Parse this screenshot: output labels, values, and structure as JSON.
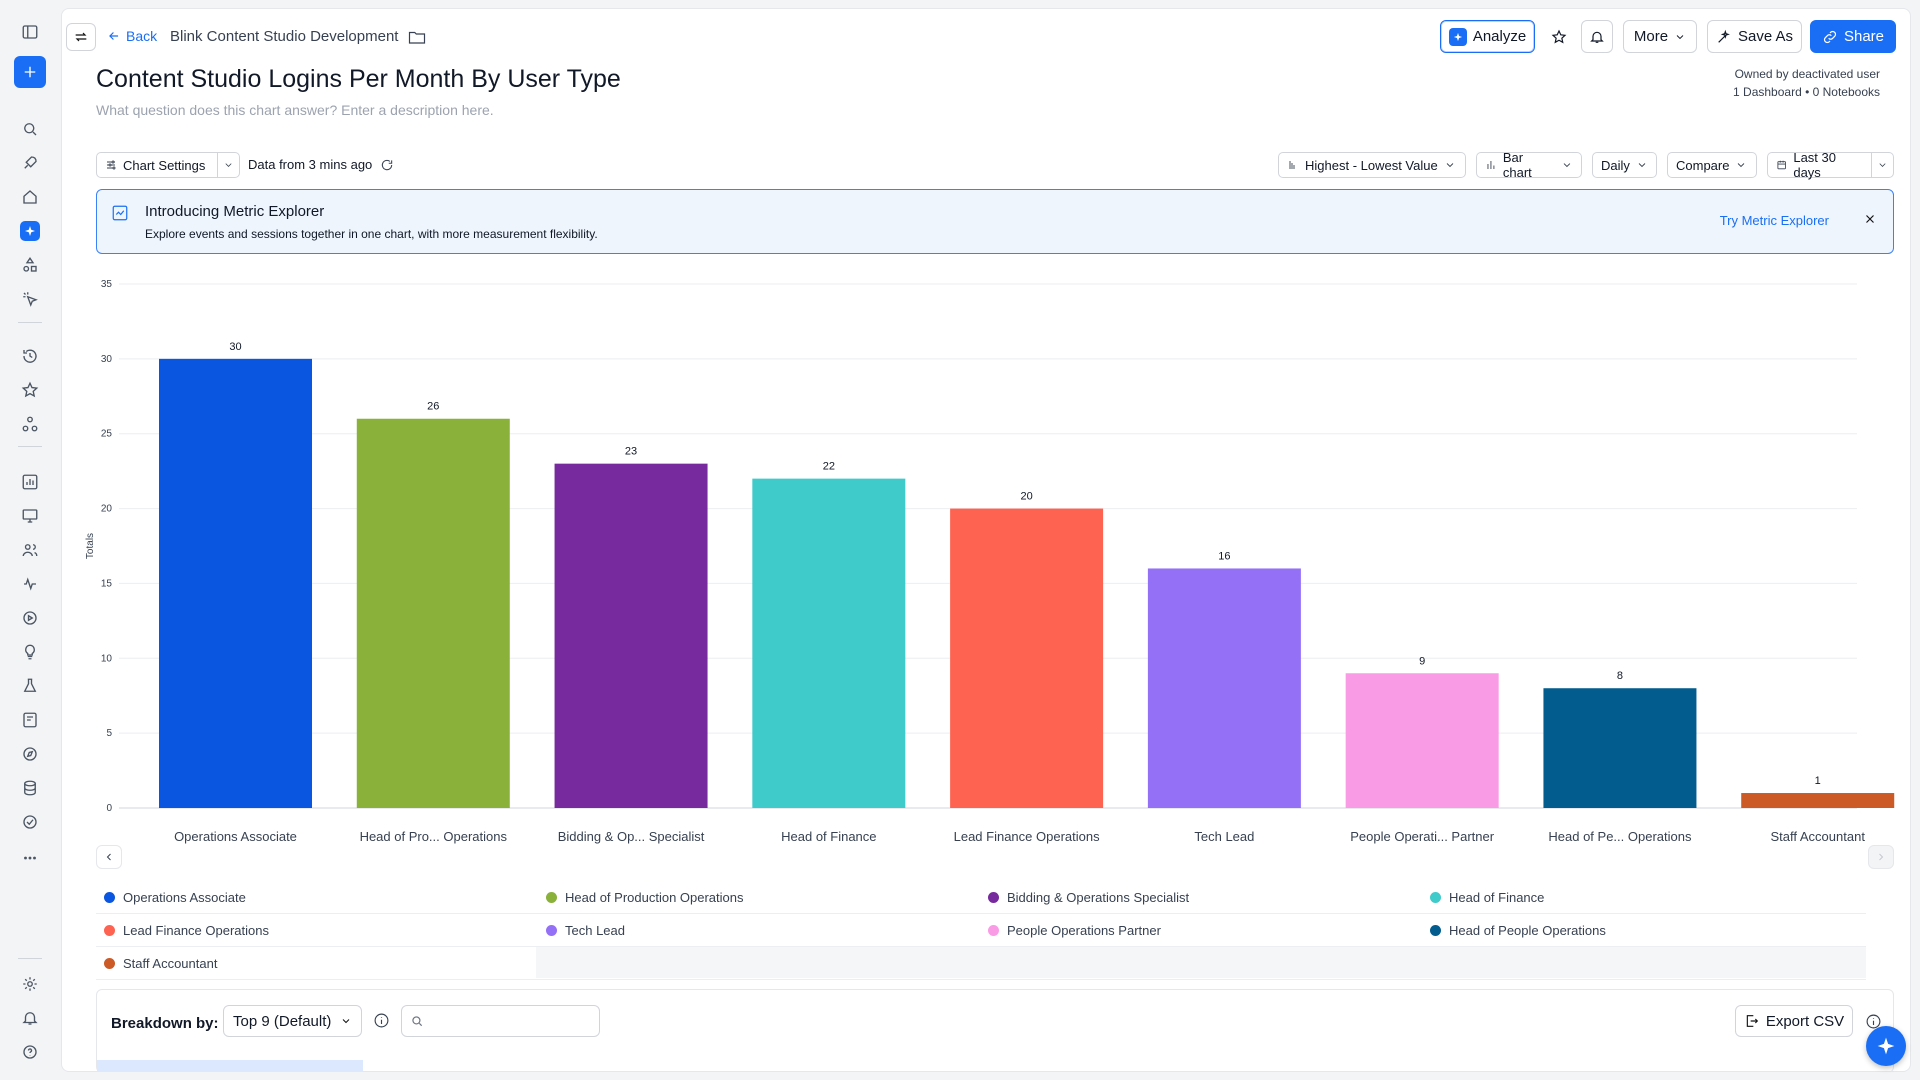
{
  "header": {
    "back_label": "Back",
    "breadcrumb": "Blink Content Studio Development",
    "analyze_label": "Analyze",
    "more_label": "More",
    "save_as_label": "Save As",
    "share_label": "Share",
    "owner_line1": "Owned by deactivated user",
    "owner_line2": "1 Dashboard • 0 Notebooks"
  },
  "page": {
    "title": "Content Studio Logins Per Month By User Type",
    "description_placeholder": "What question does this chart answer? Enter a description here."
  },
  "toolbar": {
    "chart_settings": "Chart Settings",
    "data_freshness": "Data from 3 mins ago",
    "sort": "Highest - Lowest Value",
    "chart_type": "Bar chart",
    "interval": "Daily",
    "compare": "Compare",
    "date_range": "Last 30 days"
  },
  "banner": {
    "title": "Introducing Metric Explorer",
    "subtitle": "Explore events and sessions together in one chart, with more measurement flexibility.",
    "link": "Try Metric Explorer"
  },
  "chart_data": {
    "type": "bar",
    "ylabel": "Totals",
    "ylim": [
      0,
      35
    ],
    "yticks": [
      0,
      5,
      10,
      15,
      20,
      25,
      30,
      35
    ],
    "grid": true,
    "categories": [
      "Operations Associate",
      "Head of Pro... Operations",
      "Bidding & Op... Specialist",
      "Head of Finance",
      "Lead Finance Operations",
      "Tech Lead",
      "People Operati... Partner",
      "Head of Pe... Operations",
      "Staff Accountant"
    ],
    "values": [
      30,
      26,
      23,
      22,
      20,
      16,
      9,
      8,
      1
    ],
    "colors": [
      "#0a56e0",
      "#8ab13a",
      "#772a9e",
      "#40cbcb",
      "#fe6352",
      "#9470f6",
      "#fa9be6",
      "#025c8d",
      "#cc5a26"
    ]
  },
  "legend": {
    "items": [
      {
        "label": "Operations Associate",
        "color": "#0a56e0"
      },
      {
        "label": "Head of Production Operations",
        "color": "#8ab13a"
      },
      {
        "label": "Bidding & Operations Specialist",
        "color": "#772a9e"
      },
      {
        "label": "Head of Finance",
        "color": "#40cbcb"
      },
      {
        "label": "Lead Finance Operations",
        "color": "#fe6352"
      },
      {
        "label": "Tech Lead",
        "color": "#9470f6"
      },
      {
        "label": "People Operations Partner",
        "color": "#fa9be6"
      },
      {
        "label": "Head of People Operations",
        "color": "#025c8d"
      },
      {
        "label": "Staff Accountant",
        "color": "#cc5a26"
      }
    ]
  },
  "breakdown": {
    "label": "Breakdown by:",
    "selected": "Top 9 (Default)",
    "export_label": "Export CSV"
  },
  "colors": {
    "accent": "#1a6ef5"
  }
}
